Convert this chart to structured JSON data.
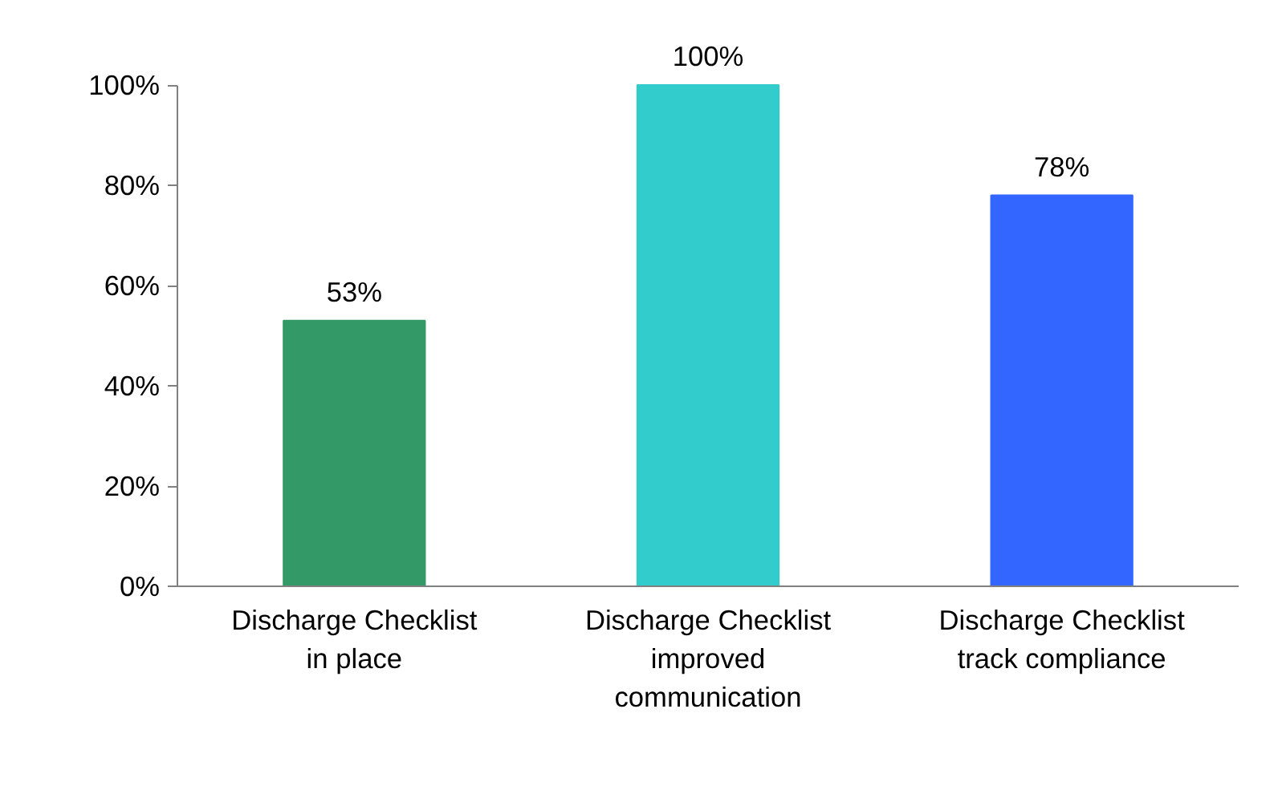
{
  "chart_data": {
    "type": "bar",
    "categories": [
      "Discharge Checklist\nin place",
      "Discharge Checklist\nimproved\ncommunication",
      "Discharge Checklist\ntrack compliance"
    ],
    "values": [
      53,
      100,
      78
    ],
    "colors": [
      "#339966",
      "#33cccc",
      "#3366ff"
    ],
    "value_labels": [
      "53%",
      "100%",
      "78%"
    ],
    "ylim": [
      0,
      100
    ],
    "yticks": [
      {
        "value": 0,
        "label": "0%"
      },
      {
        "value": 20,
        "label": "20%"
      },
      {
        "value": 40,
        "label": "40%"
      },
      {
        "value": 60,
        "label": "60%"
      },
      {
        "value": 80,
        "label": "80%"
      },
      {
        "value": 100,
        "label": "100%"
      }
    ],
    "grid": false
  }
}
